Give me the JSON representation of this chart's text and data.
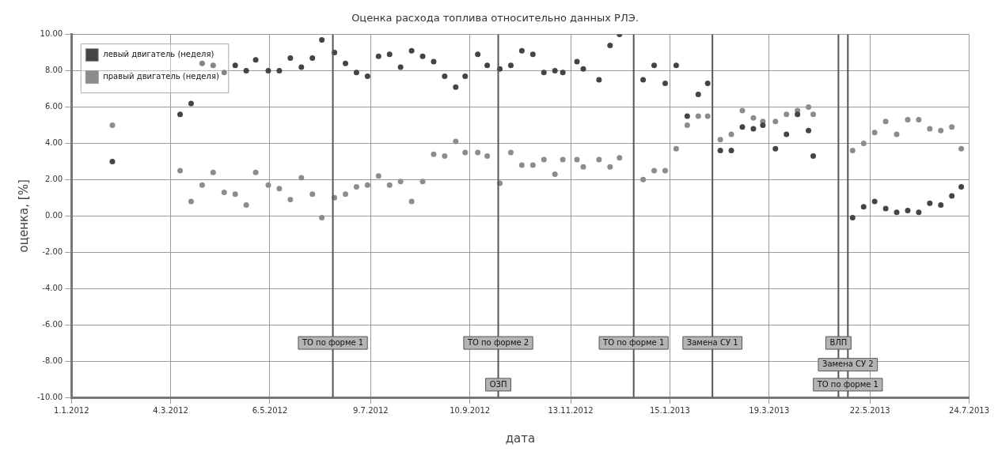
{
  "chart_data": {
    "type": "scatter",
    "title": "Оценка расхода топлива относительно данных РЛЭ.",
    "xlabel": "дата",
    "ylabel": "оценка, [%]",
    "x": [
      "2012-01-27",
      "2012-03-10",
      "2012-03-17",
      "2012-03-24",
      "2012-03-31",
      "2012-04-07",
      "2012-04-14",
      "2012-04-21",
      "2012-04-27",
      "2012-05-05",
      "2012-05-12",
      "2012-05-19",
      "2012-05-26",
      "2012-06-02",
      "2012-06-08",
      "2012-06-16",
      "2012-06-23",
      "2012-06-30",
      "2012-07-07",
      "2012-07-14",
      "2012-07-21",
      "2012-07-28",
      "2012-08-04",
      "2012-08-11",
      "2012-08-18",
      "2012-08-25",
      "2012-09-01",
      "2012-09-07",
      "2012-09-15",
      "2012-09-21",
      "2012-09-29",
      "2012-10-06",
      "2012-10-13",
      "2012-10-20",
      "2012-10-27",
      "2012-11-03",
      "2012-11-08",
      "2012-11-17",
      "2012-11-21",
      "2012-12-01",
      "2012-12-08",
      "2012-12-14",
      "2012-12-29",
      "2013-01-05",
      "2013-01-12",
      "2013-01-19",
      "2013-01-26",
      "2013-02-02",
      "2013-02-08",
      "2013-02-16",
      "2013-02-23",
      "2013-03-02",
      "2013-03-09",
      "2013-03-15",
      "2013-03-23",
      "2013-03-30",
      "2013-04-06",
      "2013-04-13",
      "2013-04-16",
      "2013-05-11",
      "2013-05-18",
      "2013-05-25",
      "2013-06-01",
      "2013-06-08",
      "2013-06-15",
      "2013-06-22",
      "2013-06-29",
      "2013-07-06",
      "2013-07-13",
      "2013-07-19"
    ],
    "series": [
      {
        "name": "левый двигатель (неделя)",
        "color": "#444444",
        "values": [
          3.0,
          5.6,
          6.2,
          8.4,
          8.3,
          7.9,
          8.3,
          8.0,
          8.6,
          8.0,
          8.0,
          8.7,
          8.2,
          8.7,
          9.7,
          9.0,
          8.4,
          7.9,
          7.7,
          8.8,
          8.9,
          8.2,
          9.1,
          8.8,
          8.5,
          7.7,
          7.1,
          7.7,
          8.9,
          8.3,
          8.1,
          8.3,
          9.1,
          8.9,
          7.9,
          8.0,
          7.9,
          8.5,
          8.1,
          7.5,
          9.4,
          10.0,
          7.5,
          8.3,
          7.3,
          8.3,
          5.5,
          6.7,
          7.3,
          3.6,
          3.6,
          4.9,
          4.8,
          5.0,
          3.7,
          4.5,
          5.6,
          4.7,
          3.3,
          -0.1,
          0.5,
          0.8,
          0.4,
          0.2,
          0.3,
          0.2,
          0.7,
          0.6,
          1.1,
          1.6
        ]
      },
      {
        "name": "правый двигатель (неделя)",
        "color": "#8c8c8c",
        "values": [
          5.0,
          2.5,
          0.8,
          1.7,
          2.4,
          1.3,
          1.2,
          0.6,
          2.4,
          1.7,
          1.5,
          0.9,
          2.1,
          1.2,
          -0.1,
          1.0,
          1.2,
          1.6,
          1.7,
          2.2,
          1.7,
          1.9,
          0.8,
          1.9,
          3.4,
          3.3,
          4.1,
          3.5,
          3.5,
          3.3,
          1.8,
          3.5,
          2.8,
          2.8,
          3.1,
          2.3,
          3.1,
          3.1,
          2.7,
          3.1,
          2.7,
          3.2,
          2.0,
          2.5,
          2.5,
          3.7,
          5.0,
          5.5,
          5.5,
          4.2,
          4.5,
          5.8,
          5.4,
          5.2,
          5.2,
          5.6,
          5.8,
          6.0,
          5.6,
          3.6,
          4.0,
          4.6,
          5.2,
          4.5,
          5.3,
          5.3,
          4.8,
          4.7,
          4.9,
          3.7
        ]
      }
    ],
    "xlim": [
      "2012-01-01",
      "2013-07-24"
    ],
    "xticks": [
      {
        "value": "2012-01-01",
        "label": "1.1.2012"
      },
      {
        "value": "2012-03-04",
        "label": "4.3.2012"
      },
      {
        "value": "2012-05-06",
        "label": "6.5.2012"
      },
      {
        "value": "2012-07-09",
        "label": "9.7.2012"
      },
      {
        "value": "2012-09-10",
        "label": "10.9.2012"
      },
      {
        "value": "2012-11-13",
        "label": "13.11.2012"
      },
      {
        "value": "2013-01-15",
        "label": "15.1.2013"
      },
      {
        "value": "2013-03-19",
        "label": "19.3.2013"
      },
      {
        "value": "2013-05-22",
        "label": "22.5.2013"
      },
      {
        "value": "2013-07-24",
        "label": "24.7.2013"
      }
    ],
    "ylim": [
      -10,
      10
    ],
    "yticks": [
      {
        "value": -10,
        "label": "-10.00"
      },
      {
        "value": -8,
        "label": "-8.00"
      },
      {
        "value": -6,
        "label": "-6.00"
      },
      {
        "value": -4,
        "label": "-4.00"
      },
      {
        "value": -2,
        "label": "-2.00"
      },
      {
        "value": 0,
        "label": "0.00"
      },
      {
        "value": 2,
        "label": "2.00"
      },
      {
        "value": 4,
        "label": "4.00"
      },
      {
        "value": 6,
        "label": "6.00"
      },
      {
        "value": 8,
        "label": "8.00"
      },
      {
        "value": 10,
        "label": "10.00"
      }
    ],
    "ref_lines": [
      {
        "axis": "x",
        "value": "2012-06-15",
        "label": "ТО по форме 1",
        "color": "#555555"
      },
      {
        "axis": "x",
        "value": "2012-09-28",
        "label": "ТО по форме 2",
        "color": "#555555"
      },
      {
        "axis": "x",
        "value": "2012-12-23",
        "label": "ТО по форме 1",
        "color": "#555555"
      },
      {
        "axis": "x",
        "value": "2013-02-11",
        "label": "Замена СУ 1",
        "color": "#555555"
      },
      {
        "axis": "x",
        "value": "2013-05-02",
        "label": "ВЛП",
        "color": "#555555"
      },
      {
        "axis": "x",
        "value": "2013-05-08",
        "label": "Замена СУ 2",
        "color": "#555555"
      }
    ],
    "annotations": [
      {
        "text": "ОЗП",
        "x": "2012-09-28",
        "y": -9.3
      },
      {
        "text": "ТО по форме 1",
        "x": "2013-05-08",
        "y": -9.3
      }
    ],
    "grid": true,
    "legend": "top left",
    "marker": "circle"
  }
}
